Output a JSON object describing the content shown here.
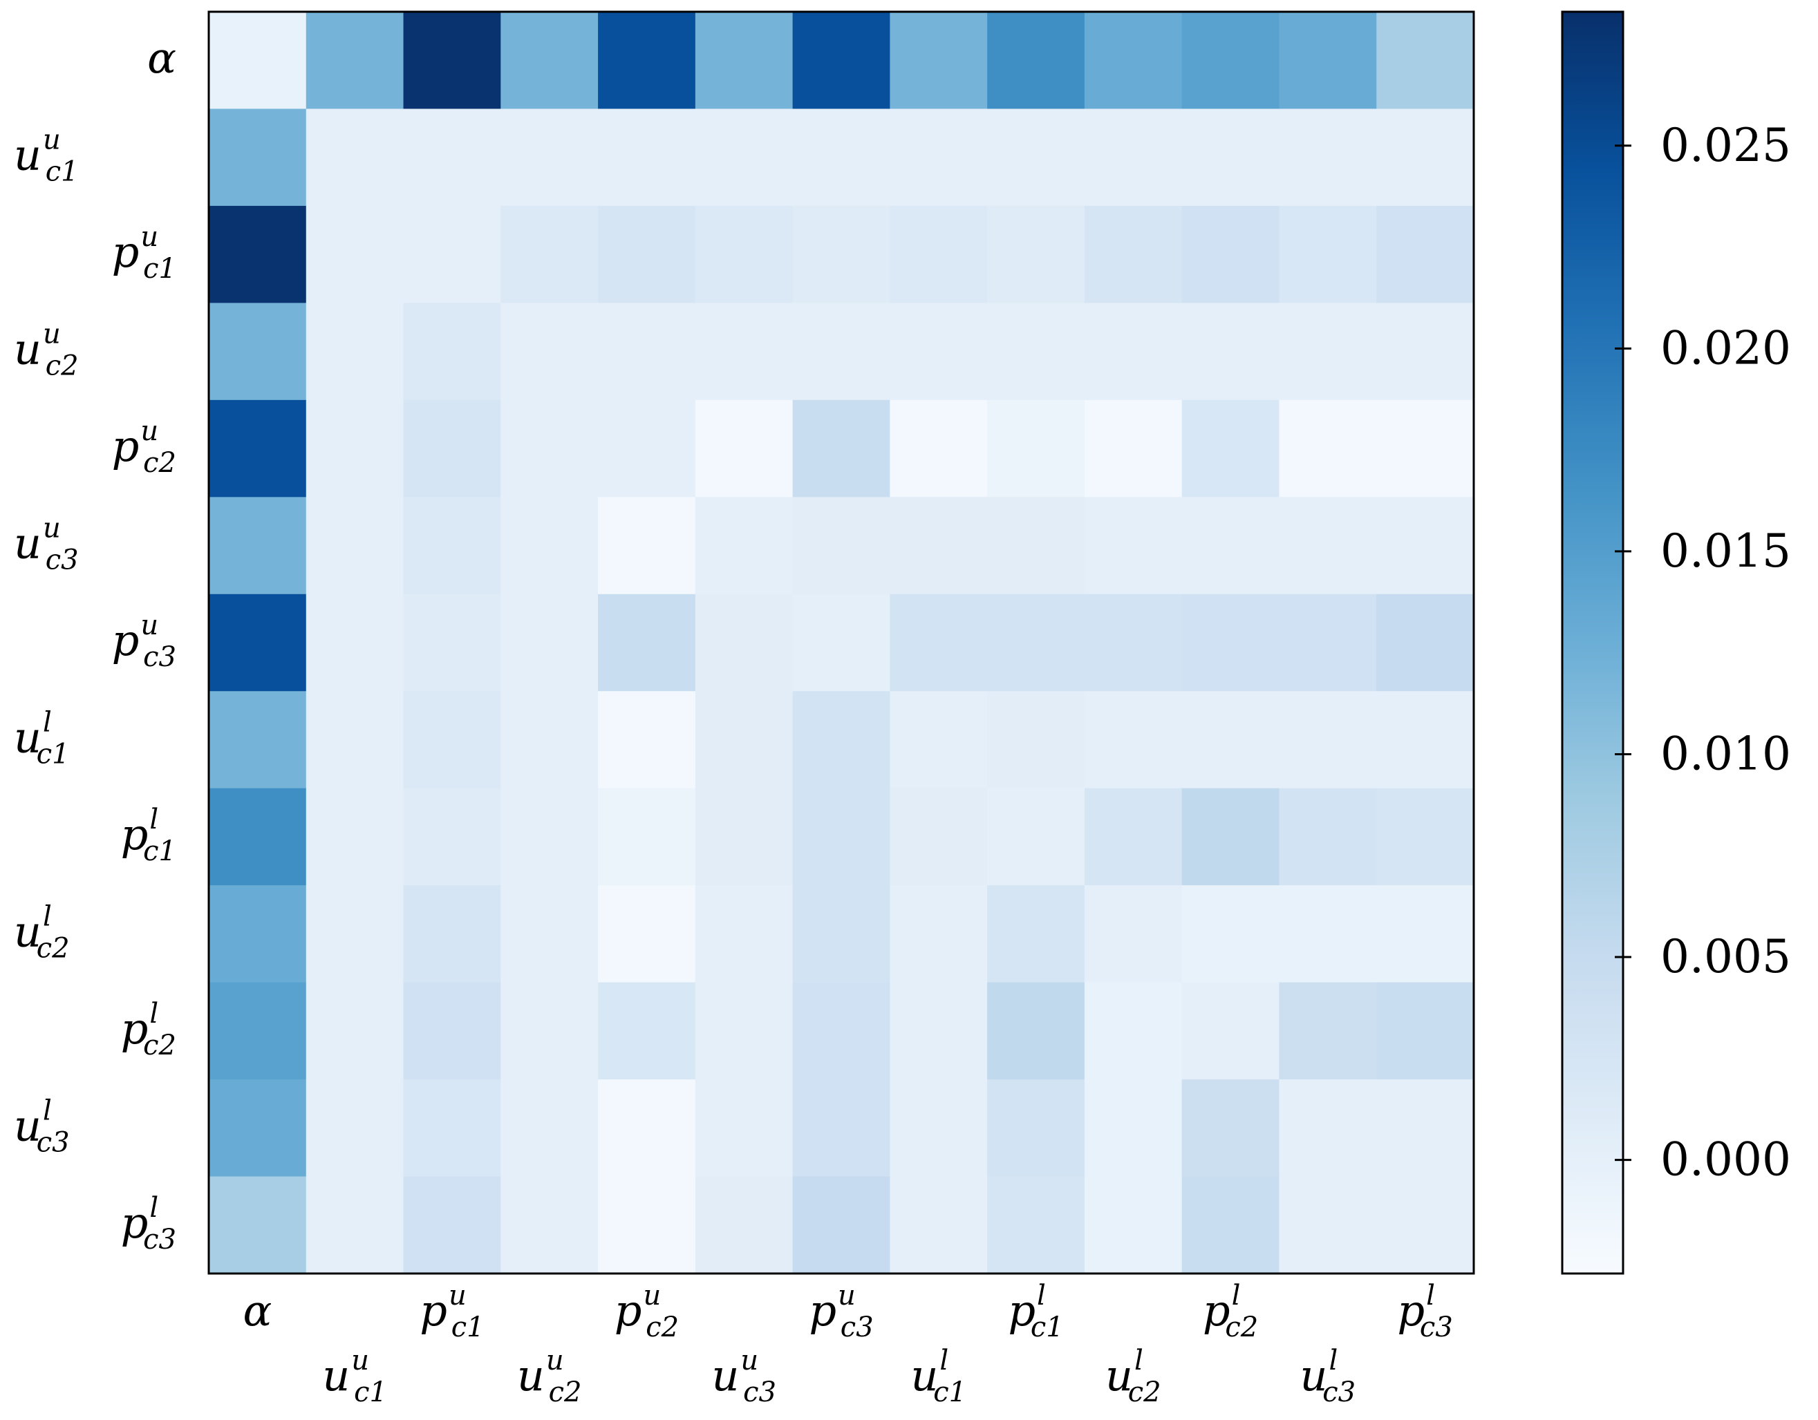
{
  "chart_data": {
    "type": "heatmap",
    "title": "",
    "xlabel": "",
    "ylabel": "",
    "labels": [
      {
        "base": "α",
        "sub": "",
        "sup": ""
      },
      {
        "base": "u",
        "sub": "c1",
        "sup": "u"
      },
      {
        "base": "p",
        "sub": "c1",
        "sup": "u"
      },
      {
        "base": "u",
        "sub": "c2",
        "sup": "u"
      },
      {
        "base": "p",
        "sub": "c2",
        "sup": "u"
      },
      {
        "base": "u",
        "sub": "c3",
        "sup": "u"
      },
      {
        "base": "p",
        "sub": "c3",
        "sup": "u"
      },
      {
        "base": "u",
        "sub": "c1",
        "sup": "l"
      },
      {
        "base": "p",
        "sub": "c1",
        "sup": "l"
      },
      {
        "base": "u",
        "sub": "c2",
        "sup": "l"
      },
      {
        "base": "p",
        "sub": "c2",
        "sup": "l"
      },
      {
        "base": "u",
        "sub": "c3",
        "sup": "l"
      },
      {
        "base": "p",
        "sub": "c3",
        "sup": "l"
      }
    ],
    "matrix": [
      [
        -0.0005,
        0.012,
        0.028,
        0.012,
        0.0245,
        0.012,
        0.0245,
        0.012,
        0.017,
        0.013,
        0.0145,
        0.013,
        0.008
      ],
      [
        0.012,
        0.0,
        0.0,
        0.0,
        0.0,
        0.0,
        0.0,
        0.0,
        0.0,
        0.0,
        0.0,
        0.0,
        0.0
      ],
      [
        0.028,
        0.0,
        0.0,
        0.0015,
        0.0025,
        0.0015,
        0.001,
        0.0015,
        0.001,
        0.0025,
        0.0035,
        0.002,
        0.0035
      ],
      [
        0.012,
        0.0,
        0.0015,
        0.0,
        0.0,
        0.0,
        0.0,
        0.0,
        0.0,
        0.0,
        0.0,
        0.0,
        0.0
      ],
      [
        0.0245,
        0.0,
        0.0025,
        0.0,
        0.0,
        -0.002,
        0.0045,
        -0.002,
        -0.001,
        -0.002,
        0.002,
        -0.002,
        -0.002
      ],
      [
        0.012,
        0.0,
        0.0015,
        0.0,
        -0.002,
        0.0,
        0.0005,
        0.0005,
        0.0005,
        0.0,
        0.0,
        0.0,
        0.0
      ],
      [
        0.0245,
        0.0,
        0.001,
        0.0,
        0.0045,
        0.0005,
        0.0,
        0.003,
        0.003,
        0.003,
        0.0035,
        0.0035,
        0.005
      ],
      [
        0.012,
        0.0,
        0.0015,
        0.0,
        -0.002,
        0.0005,
        0.003,
        0.0,
        0.0005,
        0.0,
        0.0,
        0.0,
        0.0
      ],
      [
        0.017,
        0.0,
        0.001,
        0.0,
        -0.001,
        0.0005,
        0.003,
        0.0005,
        0.0,
        0.0025,
        0.0055,
        0.003,
        0.0025
      ],
      [
        0.013,
        0.0,
        0.0025,
        0.0,
        -0.002,
        0.0,
        0.003,
        0.0,
        0.0025,
        0.0,
        -0.0005,
        -0.0005,
        -0.0005
      ],
      [
        0.0145,
        0.0,
        0.0035,
        0.0,
        0.002,
        0.0,
        0.0035,
        0.0,
        0.0055,
        -0.0005,
        0.0,
        0.004,
        0.0045
      ],
      [
        0.013,
        0.0,
        0.002,
        0.0,
        -0.002,
        0.0,
        0.0035,
        0.0,
        0.003,
        -0.0005,
        0.004,
        0.0,
        0.0
      ],
      [
        0.008,
        0.0,
        0.0035,
        0.0,
        -0.002,
        0.0005,
        0.005,
        0.0,
        0.0025,
        -0.0005,
        0.0045,
        0.0,
        0.0
      ]
    ],
    "colorscale": "Blues",
    "colorbar": {
      "range": [
        -0.0028,
        0.0283
      ],
      "ticks": [
        0.0,
        0.005,
        0.01,
        0.015,
        0.02,
        0.025
      ],
      "tick_labels": [
        "0.000",
        "0.005",
        "0.010",
        "0.015",
        "0.020",
        "0.025"
      ],
      "position": "right"
    },
    "grid": false
  }
}
